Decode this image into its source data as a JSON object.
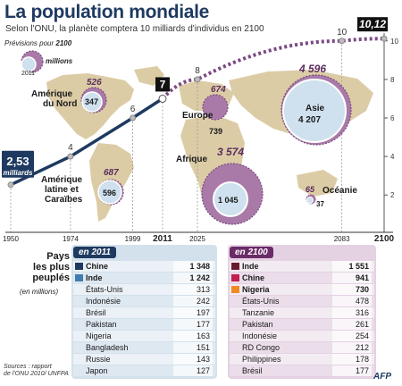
{
  "header": {
    "title": "La population mondiale",
    "subtitle": "Selon l'ONU, la planète comptera 10 milliards d'individus en 2100"
  },
  "legend": {
    "caption_prefix": "Prévisions pour",
    "caption_year": "2100",
    "millions": "millions",
    "year_2011": "2011"
  },
  "colors": {
    "navy": "#1f3a60",
    "purple": "#7a4a82",
    "map": "#d8c9a4",
    "inner": "#cfe1ee",
    "bubble": "#a97aa8"
  },
  "chart_data": {
    "type": "line",
    "title": "La population mondiale",
    "unit": "milliards",
    "x_ticks": [
      "1950",
      "1974",
      "1999",
      "2011",
      "2025",
      "2083",
      "2100"
    ],
    "y_ticks": [
      2,
      4,
      6,
      8,
      10
    ],
    "ylim": [
      1.5,
      10.5
    ],
    "xlim": [
      1950,
      2100
    ],
    "historical": [
      {
        "x": 1950,
        "y": 2.53
      },
      {
        "x": 1974,
        "y": 4
      },
      {
        "x": 1999,
        "y": 6
      },
      {
        "x": 2011,
        "y": 7
      }
    ],
    "projection": [
      {
        "x": 2011,
        "y": 7
      },
      {
        "x": 2025,
        "y": 8
      },
      {
        "x": 2083,
        "y": 10
      },
      {
        "x": 2100,
        "y": 10.12
      }
    ],
    "point_labels": [
      {
        "x": 1950,
        "y": 2.53,
        "text": "2,53",
        "sub": "milliards",
        "boxed": "navy"
      },
      {
        "x": 1974,
        "y": 4,
        "text": "4"
      },
      {
        "x": 1999,
        "y": 6,
        "text": "6"
      },
      {
        "x": 2011,
        "y": 7,
        "text": "7",
        "boxed": "black"
      },
      {
        "x": 2025,
        "y": 8,
        "text": "8"
      },
      {
        "x": 2083,
        "y": 10,
        "text": "10"
      },
      {
        "x": 2100,
        "y": 10.12,
        "text": "10,12",
        "boxed": "black"
      }
    ],
    "regions": [
      {
        "name": "Amérique du Nord",
        "v2011": 347,
        "v2100": 526
      },
      {
        "name": "Europe",
        "v2011": 739,
        "v2100": 674
      },
      {
        "name": "Asie",
        "v2011": 4207,
        "v2100": 4596
      },
      {
        "name": "Afrique",
        "v2011": 1045,
        "v2100": 3574
      },
      {
        "name": "Amérique latine et Caraïbes",
        "v2011": 596,
        "v2100": 687
      },
      {
        "name": "Océanie",
        "v2011": 37,
        "v2100": 65
      }
    ]
  },
  "labels": {
    "region_na_line1": "Amérique",
    "region_na_line2": "du Nord",
    "region_eu": "Europe",
    "region_asia": "Asie",
    "region_af": "Afrique",
    "region_la_line1": "Amérique",
    "region_la_line2": "latine et",
    "region_la_line3": "Caraïbes",
    "region_oc": "Océanie",
    "na_2100": "526",
    "na_2011": "347",
    "eu_2100": "674",
    "eu_2011": "739",
    "as_2100": "4 596",
    "as_2011": "4 207",
    "af_2100": "3 574",
    "af_2011": "1 045",
    "la_2100": "687",
    "la_2011": "596",
    "oc_2100": "65",
    "oc_2011": "37"
  },
  "tables": {
    "title_line1": "Pays",
    "title_line2": "les plus",
    "title_line3": "peuplés",
    "unit": "(en millions)",
    "t2011": {
      "heading": "en 2011",
      "rows": [
        {
          "name": "Chine",
          "value": "1 348",
          "color": "#1f3a60",
          "bold": true
        },
        {
          "name": "Inde",
          "value": "1 242",
          "color": "#3f7db1",
          "bold": true
        },
        {
          "name": "États-Unis",
          "value": "313"
        },
        {
          "name": "Indonésie",
          "value": "242"
        },
        {
          "name": "Brésil",
          "value": "197"
        },
        {
          "name": "Pakistan",
          "value": "177"
        },
        {
          "name": "Nigeria",
          "value": "163"
        },
        {
          "name": "Bangladesh",
          "value": "151"
        },
        {
          "name": "Russie",
          "value": "143"
        },
        {
          "name": "Japon",
          "value": "127"
        }
      ]
    },
    "t2100": {
      "heading": "en 2100",
      "rows": [
        {
          "name": "Inde",
          "value": "1 551",
          "color": "#6a1a2e",
          "bold": true
        },
        {
          "name": "Chine",
          "value": "941",
          "color": "#c21e4e",
          "bold": true
        },
        {
          "name": "Nigeria",
          "value": "730",
          "color": "#f08a22",
          "bold": true
        },
        {
          "name": "États-Unis",
          "value": "478"
        },
        {
          "name": "Tanzanie",
          "value": "316"
        },
        {
          "name": "Pakistan",
          "value": "261"
        },
        {
          "name": "Indonésie",
          "value": "254"
        },
        {
          "name": "RD Congo",
          "value": "212"
        },
        {
          "name": "Philippines",
          "value": "178"
        },
        {
          "name": "Brésil",
          "value": "177"
        }
      ]
    }
  },
  "footer": {
    "source_line1": "Sources : rapport",
    "source_line2": "de l'ONU 2010/ UNFPA",
    "brand": "AFP"
  }
}
